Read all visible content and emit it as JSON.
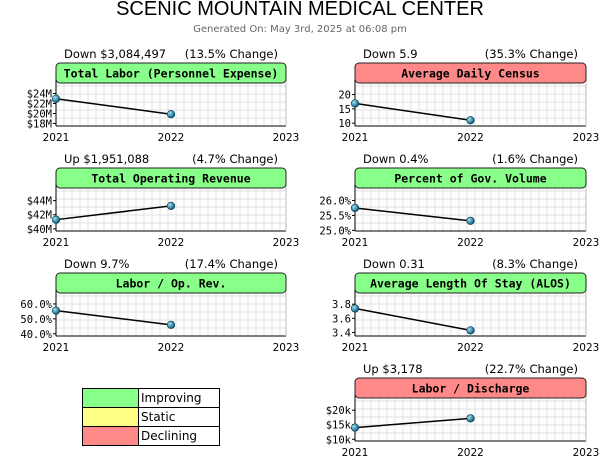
{
  "header": {
    "title": "SCENIC MOUNTAIN MEDICAL CENTER",
    "generated": "Generated On: May 3rd, 2025 at 06:08 pm"
  },
  "colors": {
    "improving": "#88ff88",
    "static": "#ffff88",
    "declining": "#ff8888"
  },
  "legend": [
    {
      "label": "Improving",
      "status": "improving"
    },
    {
      "label": "Static",
      "status": "static"
    },
    {
      "label": "Declining",
      "status": "declining"
    }
  ],
  "chart_data": [
    {
      "type": "line",
      "title": "Total Labor (Personnel Expense)",
      "status": "improving",
      "change_text": "Down $3,084,497",
      "pct_text": "(13.5% Change)",
      "x": [
        2021,
        2022
      ],
      "x_ticks": [
        "2021",
        "2022",
        "2023"
      ],
      "values": [
        22.95,
        19.86
      ],
      "ylim": [
        17.5,
        25.5
      ],
      "y_ticks": [
        {
          "v": 24,
          "label": "$24M"
        },
        {
          "v": 22,
          "label": "$22M"
        },
        {
          "v": 20,
          "label": "$20M"
        },
        {
          "v": 18,
          "label": "$18M"
        }
      ],
      "grid": true
    },
    {
      "type": "line",
      "title": "Average Daily Census",
      "status": "declining",
      "change_text": "Down 5.9",
      "pct_text": "(35.3% Change)",
      "x": [
        2021,
        2022
      ],
      "x_ticks": [
        "2021",
        "2022",
        "2023"
      ],
      "values": [
        16.9,
        11.0
      ],
      "ylim": [
        9,
        23
      ],
      "y_ticks": [
        {
          "v": 20,
          "label": "20"
        },
        {
          "v": 15,
          "label": "15"
        },
        {
          "v": 10,
          "label": "10"
        }
      ],
      "grid": true
    },
    {
      "type": "line",
      "title": "Total Operating Revenue",
      "status": "improving",
      "change_text": "Up $1,951,088",
      "pct_text": "(4.7% Change)",
      "x": [
        2021,
        2022
      ],
      "x_ticks": [
        "2021",
        "2022",
        "2023"
      ],
      "values": [
        41.3,
        43.25
      ],
      "ylim": [
        39.7,
        45.5
      ],
      "y_ticks": [
        {
          "v": 44,
          "label": "$44M"
        },
        {
          "v": 42,
          "label": "$42M"
        },
        {
          "v": 40,
          "label": "$40M"
        }
      ],
      "grid": true
    },
    {
      "type": "line",
      "title": "Percent of Gov. Volume",
      "status": "improving",
      "change_text": "Down 0.4%",
      "pct_text": "(1.6% Change)",
      "x": [
        2021,
        2022
      ],
      "x_ticks": [
        "2021",
        "2022",
        "2023"
      ],
      "values": [
        25.75,
        25.32
      ],
      "ylim": [
        24.98,
        26.35
      ],
      "y_ticks": [
        {
          "v": 26.0,
          "label": "26.0%"
        },
        {
          "v": 25.5,
          "label": "25.5%"
        },
        {
          "v": 25.0,
          "label": "25.0%"
        }
      ],
      "grid": true
    },
    {
      "type": "line",
      "title": "Labor / Op. Rev.",
      "status": "improving",
      "change_text": "Down 9.7%",
      "pct_text": "(17.4% Change)",
      "x": [
        2021,
        2022
      ],
      "x_ticks": [
        "2021",
        "2022",
        "2023"
      ],
      "values": [
        55.5,
        46.0
      ],
      "ylim": [
        38.5,
        66
      ],
      "y_ticks": [
        {
          "v": 60,
          "label": "60.0%"
        },
        {
          "v": 50,
          "label": "50.0%"
        },
        {
          "v": 40,
          "label": "40.0%"
        }
      ],
      "grid": true
    },
    {
      "type": "line",
      "title": "Average Length Of Stay (ALOS)",
      "status": "improving",
      "change_text": "Down 0.31",
      "pct_text": "(8.3% Change)",
      "x": [
        2021,
        2022
      ],
      "x_ticks": [
        "2021",
        "2022",
        "2023"
      ],
      "values": [
        3.74,
        3.43
      ],
      "ylim": [
        3.35,
        3.93
      ],
      "y_ticks": [
        {
          "v": 3.8,
          "label": "3.8"
        },
        {
          "v": 3.6,
          "label": "3.6"
        },
        {
          "v": 3.4,
          "label": "3.4"
        }
      ],
      "grid": true
    },
    {
      "type": "line",
      "title": "Labor / Discharge",
      "status": "declining",
      "change_text": "Up $3,178",
      "pct_text": "(22.7% Change)",
      "x": [
        2021,
        2022
      ],
      "x_ticks": [
        "2021",
        "2022",
        "2023"
      ],
      "values": [
        14.0,
        17.2
      ],
      "ylim": [
        9.4,
        23.5
      ],
      "y_ticks": [
        {
          "v": 20,
          "label": "$20k"
        },
        {
          "v": 15,
          "label": "$15k"
        },
        {
          "v": 10,
          "label": "$10k"
        }
      ],
      "grid": true
    }
  ]
}
